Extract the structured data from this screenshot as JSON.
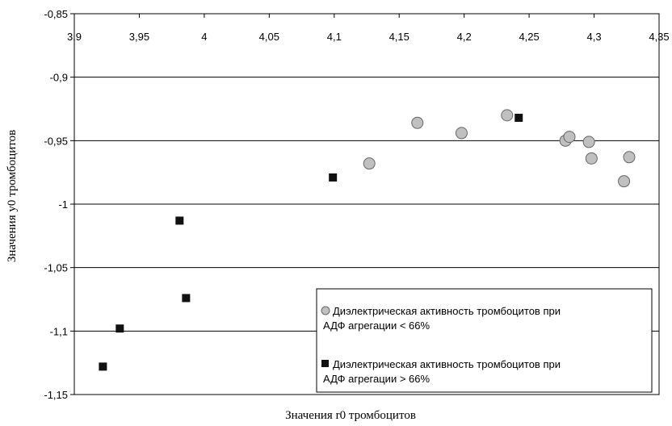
{
  "chart_data": {
    "type": "scatter",
    "title": "",
    "xlabel": "Значения r0 тромбоцитов",
    "ylabel": "Значения y0 тромбоцитов",
    "xlim": [
      3.9,
      4.35
    ],
    "ylim": [
      -1.15,
      -0.85
    ],
    "x_ticks": [
      3.9,
      3.95,
      4.0,
      4.05,
      4.1,
      4.15,
      4.2,
      4.25,
      4.3,
      4.35
    ],
    "x_tick_labels": [
      "3,9",
      "3,95",
      "4",
      "4,05",
      "4,1",
      "4,15",
      "4,2",
      "4,25",
      "4,3",
      "4,35"
    ],
    "y_ticks": [
      -0.85,
      -0.9,
      -0.95,
      -1.0,
      -1.05,
      -1.1,
      -1.15
    ],
    "y_tick_labels": [
      "-0,85",
      "-0,9",
      "-0,95",
      "-1",
      "-1,05",
      "-1,1",
      "-1,15"
    ],
    "grid": "horizontal",
    "x_axis_position": "top",
    "legend_position": "bottom-right",
    "series": [
      {
        "name": "Диэлектрическая активность тромбоцитов при АДФ агрегации < 66%",
        "legend_lines": [
          "Диэлектрическая активность тромбоцитов при",
          "АДФ агрегации < 66%"
        ],
        "marker": "circle",
        "color": "#c0c0c0",
        "points": [
          [
            4.127,
            -0.968
          ],
          [
            4.164,
            -0.936
          ],
          [
            4.198,
            -0.944
          ],
          [
            4.233,
            -0.93
          ],
          [
            4.278,
            -0.95
          ],
          [
            4.281,
            -0.947
          ],
          [
            4.296,
            -0.951
          ],
          [
            4.298,
            -0.964
          ],
          [
            4.323,
            -0.982
          ],
          [
            4.327,
            -0.963
          ]
        ]
      },
      {
        "name": "Диэлектрическая активность тромбоцитов при АДФ агрегации > 66%",
        "legend_lines": [
          "Диэлектрическая активность тромбоцитов при",
          "АДФ агрегации > 66%"
        ],
        "marker": "square",
        "color": "#111111",
        "points": [
          [
            3.922,
            -1.128
          ],
          [
            3.935,
            -1.098
          ],
          [
            3.981,
            -1.013
          ],
          [
            3.986,
            -1.074
          ],
          [
            4.099,
            -0.979
          ],
          [
            4.242,
            -0.932
          ]
        ]
      }
    ]
  }
}
